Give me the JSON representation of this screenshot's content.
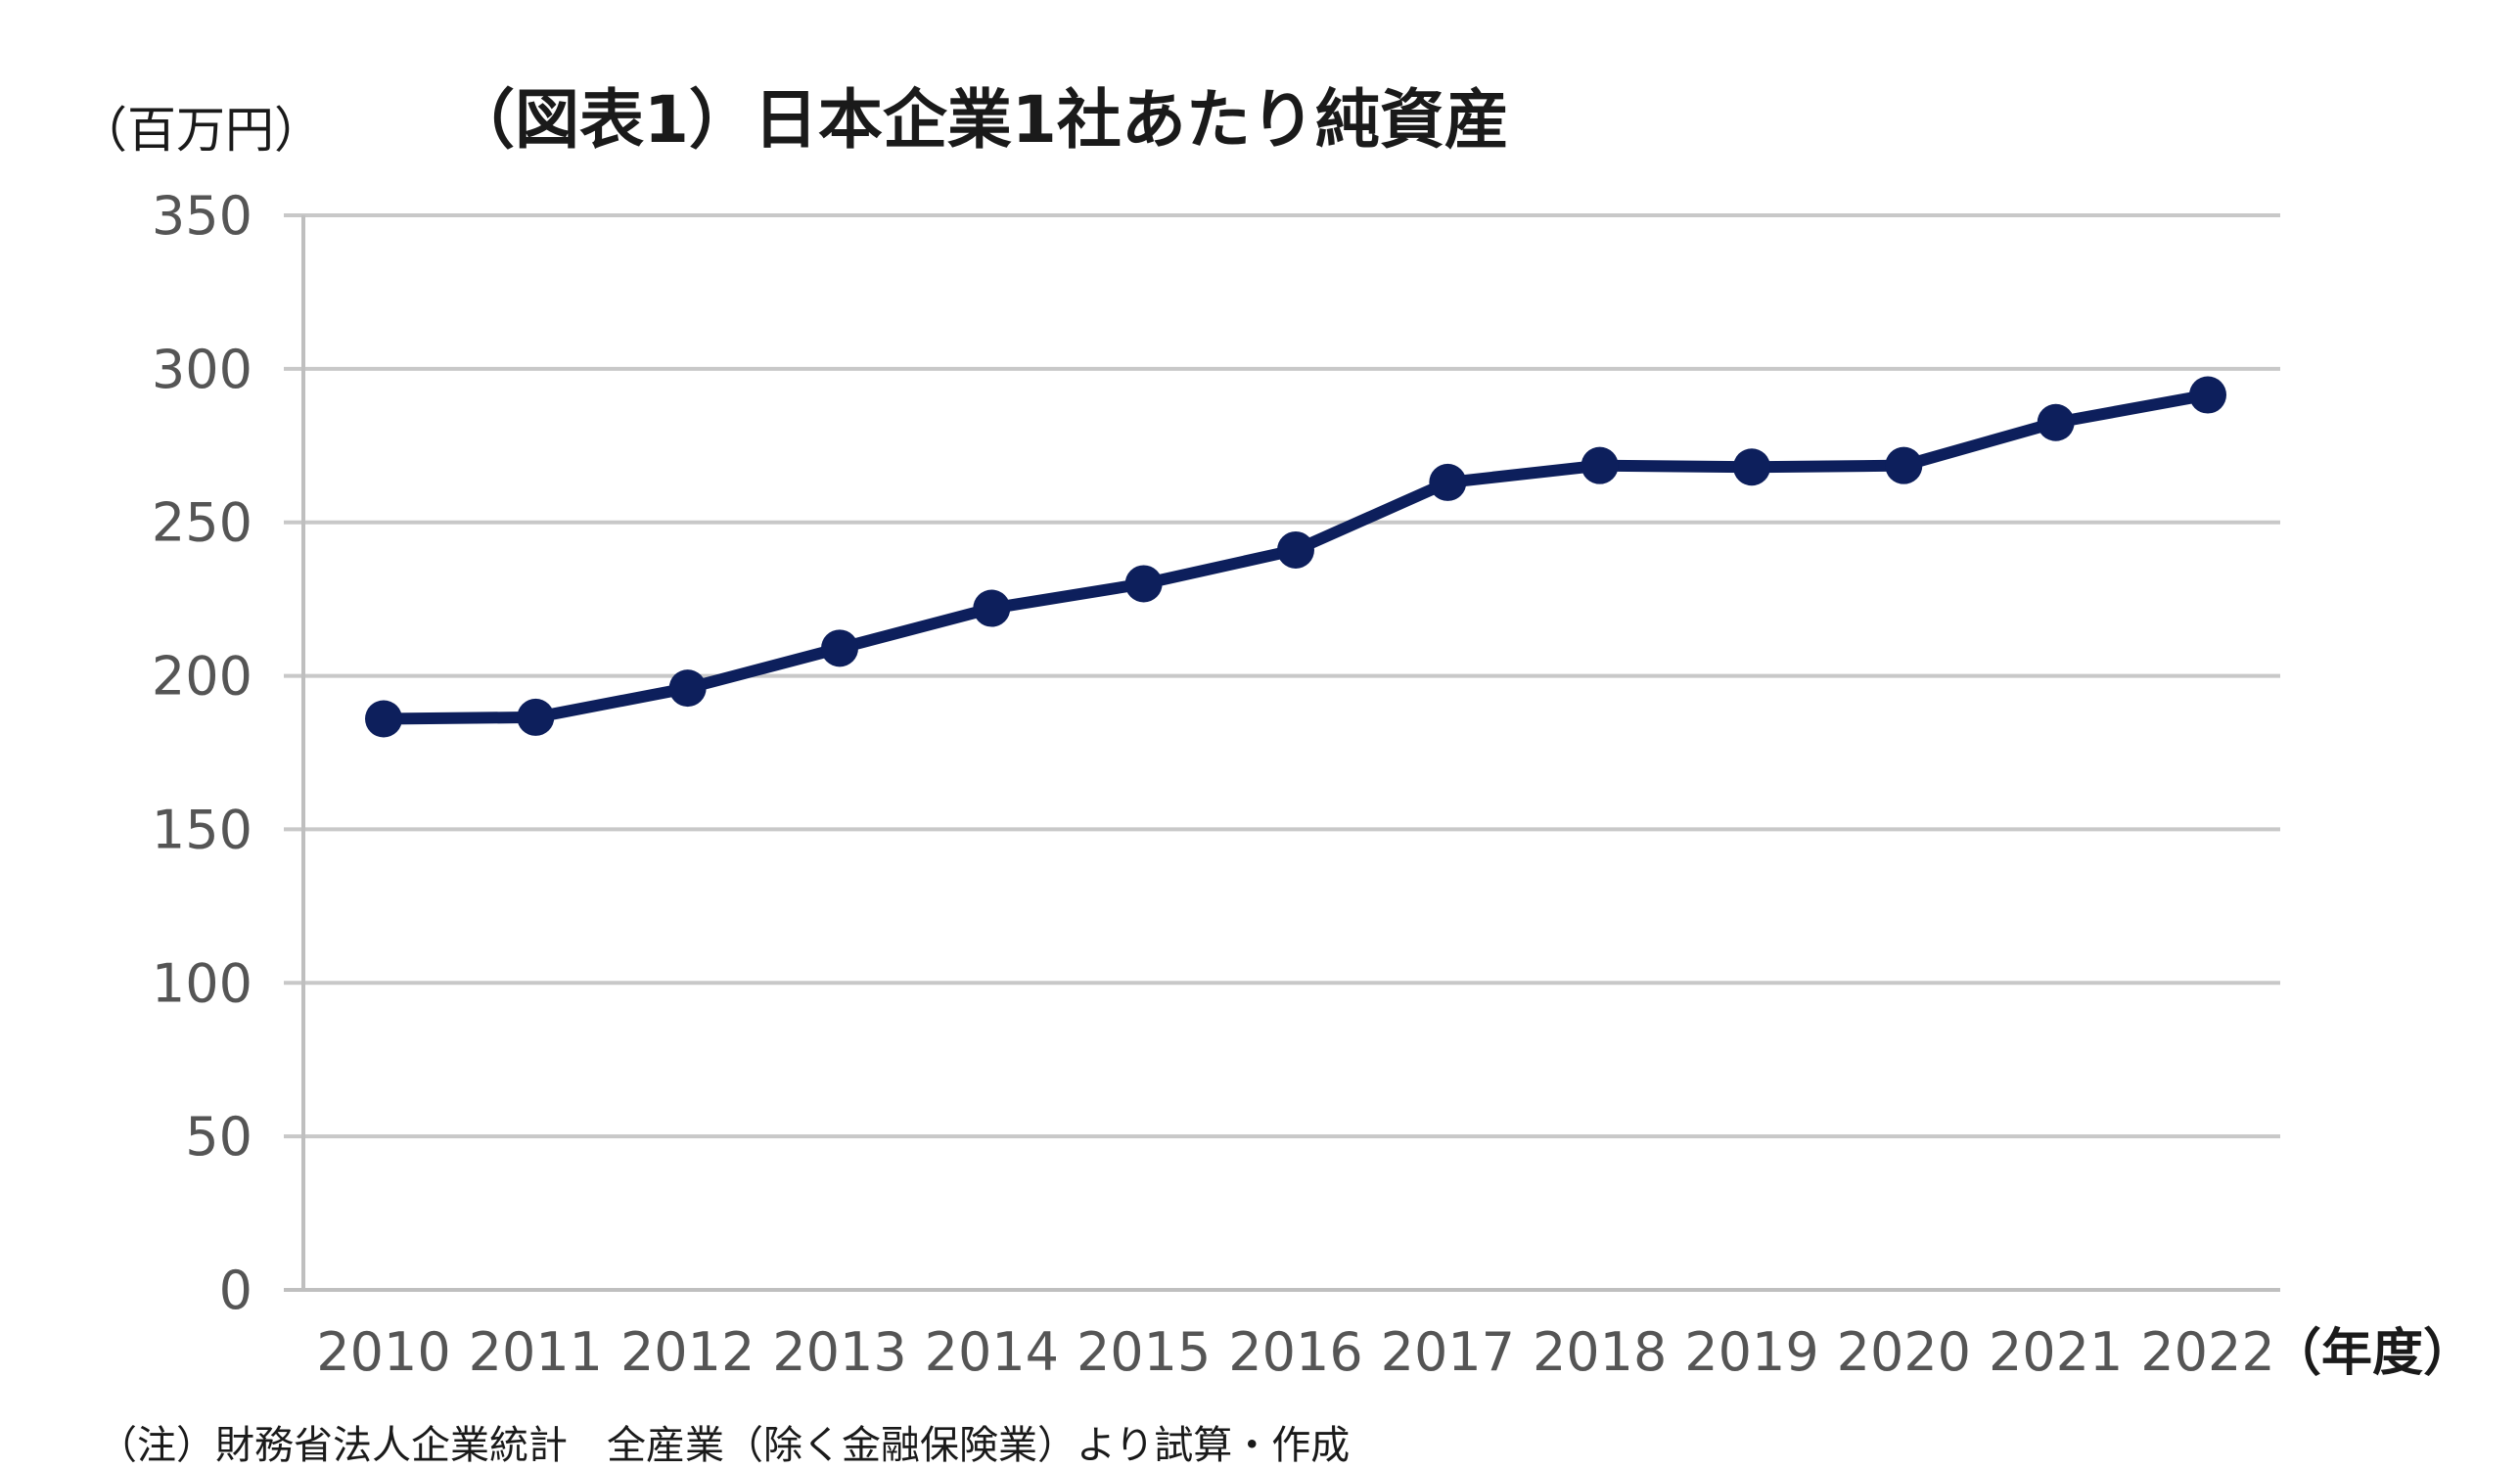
{
  "chart_data": {
    "type": "line",
    "title": "（図表1）日本企業1社あたり純資産",
    "y_unit_label": "（百万円）",
    "x_unit_label": "（年度）",
    "note": "（注）財務省法人企業統計　全産業（除く金融保険業）より試算・作成",
    "categories": [
      "2010",
      "2011",
      "2012",
      "2013",
      "2014",
      "2015",
      "2016",
      "2017",
      "2018",
      "2019",
      "2020",
      "2021",
      "2022"
    ],
    "series": [
      {
        "values": [
          186,
          186.5,
          196,
          209,
          222,
          230,
          241,
          263,
          268.5,
          268,
          268.5,
          282.5,
          291.5
        ]
      }
    ],
    "ylim": [
      0,
      350
    ],
    "yticks": [
      "0",
      "50",
      "100",
      "150",
      "200",
      "250",
      "300",
      "350"
    ],
    "grid": true,
    "legend": "none",
    "line_color": "#0d1f5c"
  }
}
